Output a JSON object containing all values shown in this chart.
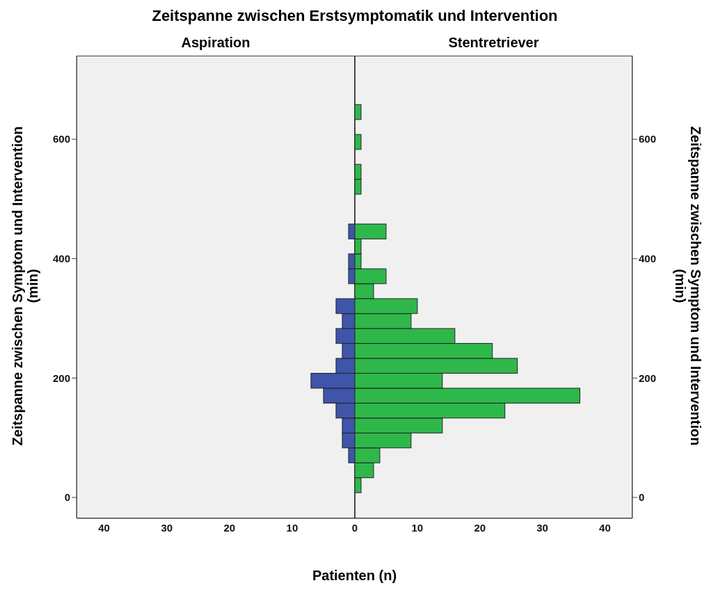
{
  "chart_data": [
    {
      "type": "histogram",
      "title": "Zeitspanne zwischen Erstsymptomatik und Intervention",
      "subtitle": "Aspiration",
      "xlabel": "Patienten (n)",
      "ylabel": "Zeitspanne zwischen Symptom und Intervention\n(min)",
      "orientation": "horizontal",
      "color": "#3f55a9",
      "bins": [
        8,
        33,
        58,
        83,
        108,
        133,
        158,
        183,
        208,
        233,
        258,
        283,
        308,
        333,
        358,
        383,
        408,
        433,
        458,
        483,
        508,
        533,
        558,
        583,
        608,
        633,
        658
      ],
      "values": [
        0,
        0,
        1,
        2,
        2,
        3,
        5,
        7,
        3,
        2,
        3,
        2,
        3,
        0,
        1,
        1,
        0,
        1,
        0,
        0,
        0,
        0,
        0,
        0,
        0,
        0
      ],
      "xlim": [
        44.4,
        0
      ],
      "xticks": [
        40,
        30,
        20,
        10
      ],
      "ylim": [
        -35,
        740
      ],
      "yticks": [
        0,
        200,
        400,
        600
      ],
      "grid": false
    },
    {
      "type": "histogram",
      "subtitle": "Stentretriever",
      "ylabel": "Zeitspanne zwischen Symptom und Intervention\n(min)",
      "orientation": "horizontal",
      "color": "#2eb84a",
      "bins": [
        8,
        33,
        58,
        83,
        108,
        133,
        158,
        183,
        208,
        233,
        258,
        283,
        308,
        333,
        358,
        383,
        408,
        433,
        458,
        483,
        508,
        533,
        558,
        583,
        608,
        633,
        658
      ],
      "values": [
        1,
        3,
        4,
        9,
        14,
        24,
        36,
        14,
        26,
        22,
        16,
        9,
        10,
        3,
        5,
        1,
        1,
        5,
        0,
        0,
        1,
        1,
        0,
        1,
        0,
        1
      ],
      "xlim": [
        0,
        44.4
      ],
      "xticks": [
        0,
        10,
        20,
        30,
        40
      ],
      "ylim": [
        -35,
        740
      ],
      "yticks": [
        0,
        200,
        400,
        600
      ],
      "grid": false
    }
  ]
}
